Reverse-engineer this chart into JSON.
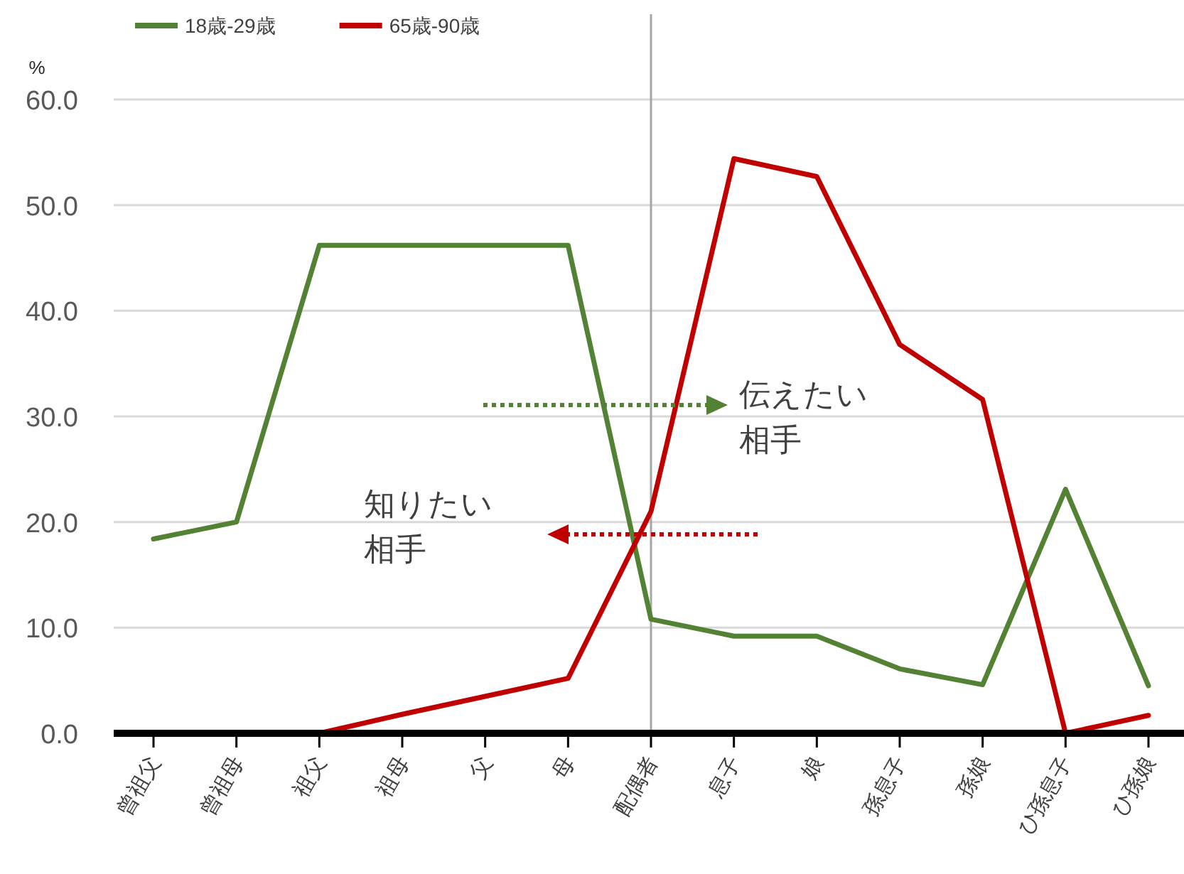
{
  "chart_data": {
    "type": "line",
    "ylabel": "%",
    "categories": [
      "曾祖父",
      "曾祖母",
      "祖父",
      "祖母",
      "父",
      "母",
      "配偶者",
      "息子",
      "娘",
      "孫息子",
      "孫娘",
      "ひ孫息子",
      "ひ孫娘"
    ],
    "series": [
      {
        "name": "18歳-29歳",
        "color": "#548235",
        "values": [
          18.4,
          20.0,
          46.2,
          46.2,
          46.2,
          46.2,
          10.8,
          9.2,
          9.2,
          6.1,
          4.6,
          23.1,
          4.5
        ]
      },
      {
        "name": "65歳-90歳",
        "color": "#c00000",
        "values": [
          0,
          0,
          0,
          1.8,
          3.5,
          5.2,
          21.0,
          54.4,
          52.7,
          36.8,
          31.6,
          0,
          1.7
        ]
      }
    ],
    "ylim": [
      0,
      60
    ],
    "yticks": [
      {
        "value": 0,
        "label": "0.0"
      },
      {
        "value": 10,
        "label": "10.0"
      },
      {
        "value": 20,
        "label": "20.0"
      },
      {
        "value": 30,
        "label": "30.0"
      },
      {
        "value": 40,
        "label": "40.0"
      },
      {
        "value": 50,
        "label": "50.0"
      },
      {
        "value": 60,
        "label": "60.0"
      }
    ],
    "grid": "y",
    "legend": "top",
    "ref_lines": [
      {
        "axis": "x",
        "value": "配偶者",
        "color": "#a6a6a6"
      }
    ],
    "annotations": [
      "伝えたい相手",
      "知りたい相手"
    ]
  }
}
